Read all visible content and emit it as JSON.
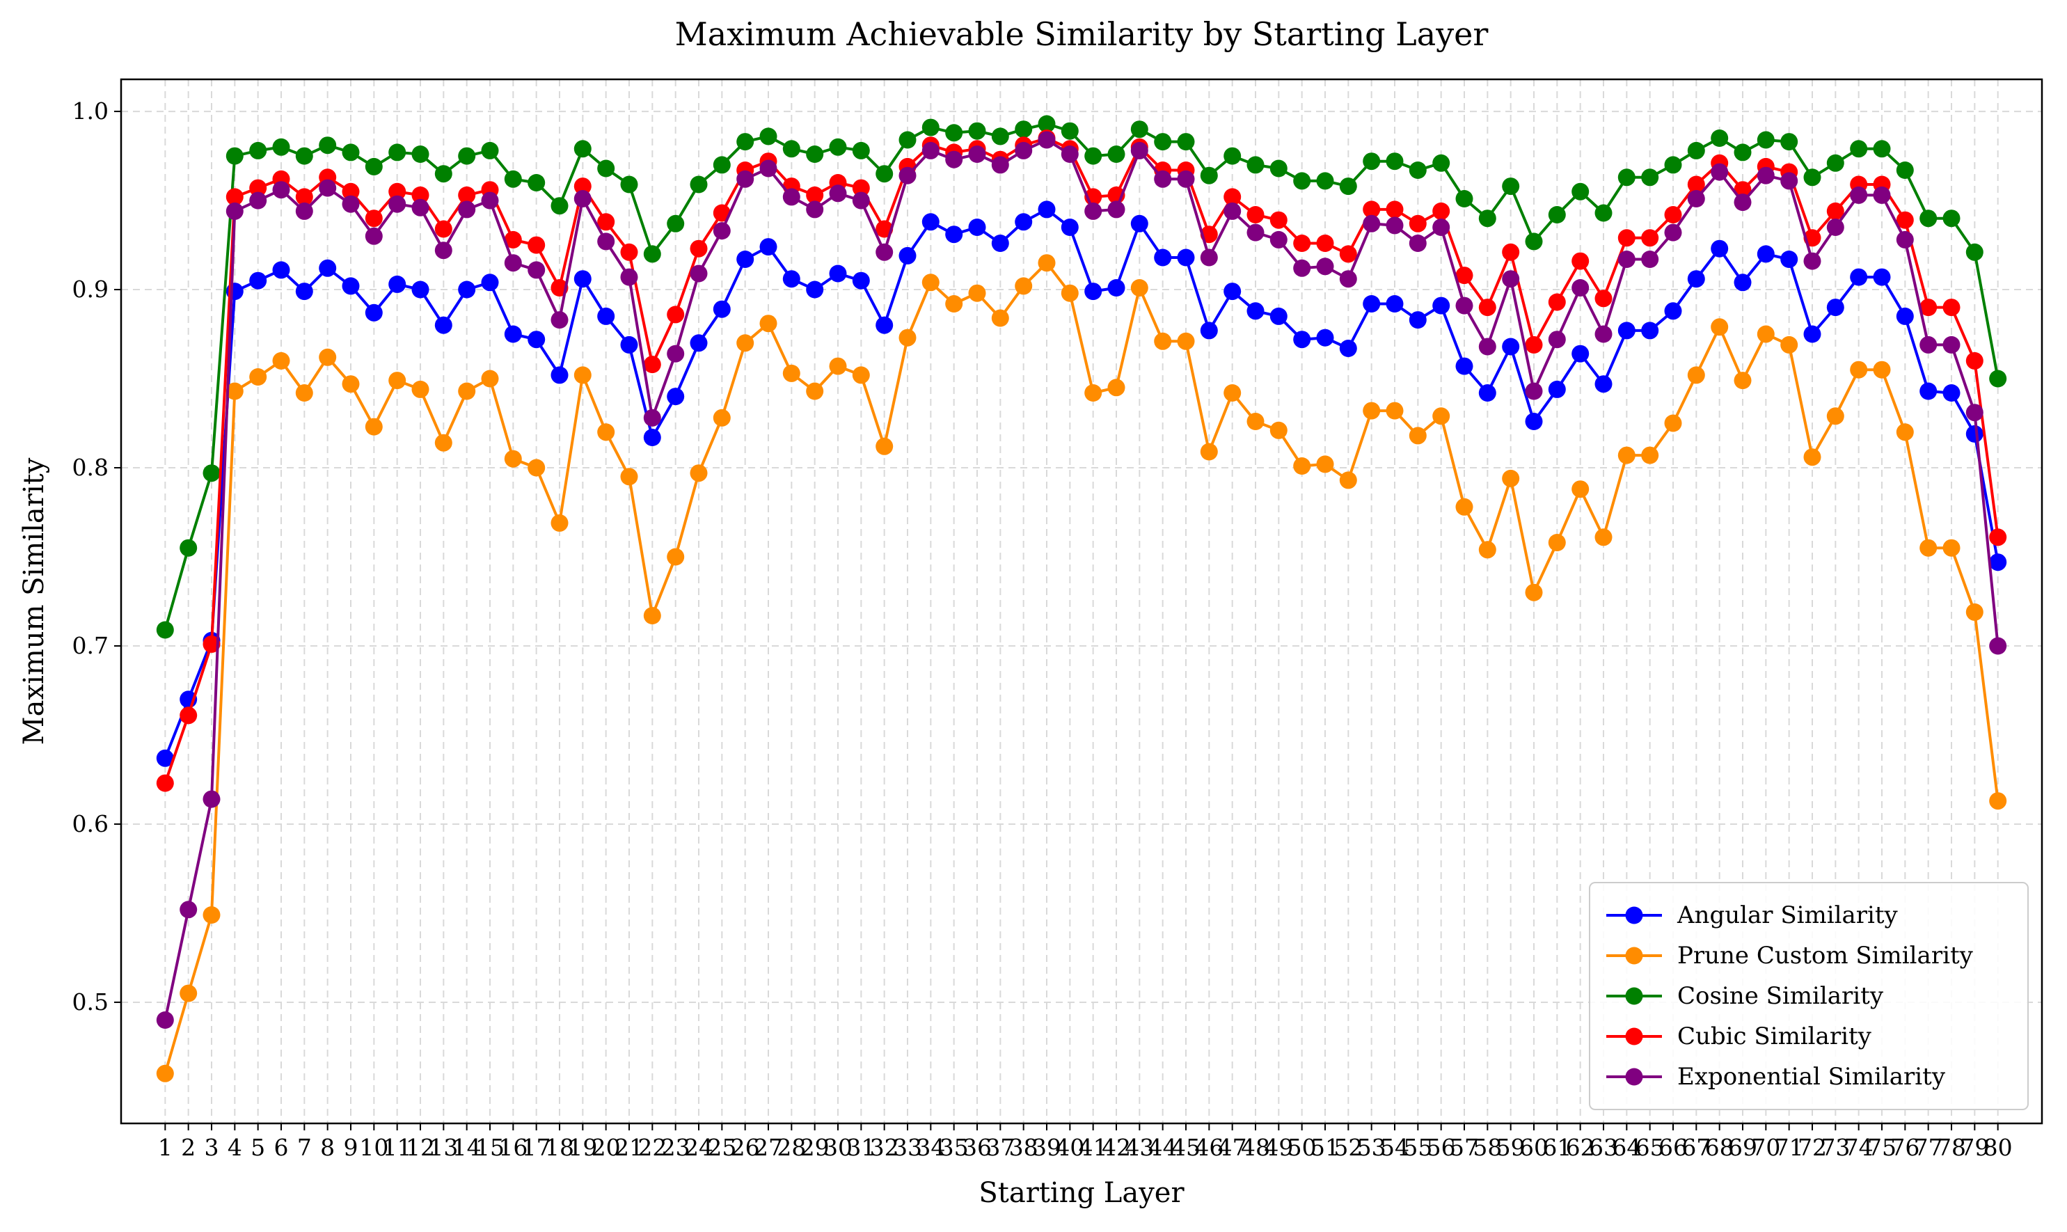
{
  "chart_data": {
    "type": "line",
    "title": "Maximum Achievable Similarity by Starting Layer",
    "xlabel": "Starting Layer",
    "ylabel": "Maximum Similarity",
    "x": [
      1,
      2,
      3,
      4,
      5,
      6,
      7,
      8,
      9,
      10,
      11,
      12,
      13,
      14,
      15,
      16,
      17,
      18,
      19,
      20,
      21,
      22,
      23,
      24,
      25,
      26,
      27,
      28,
      29,
      30,
      31,
      32,
      33,
      34,
      35,
      36,
      37,
      38,
      39,
      40,
      41,
      42,
      43,
      44,
      45,
      46,
      47,
      48,
      49,
      50,
      51,
      52,
      53,
      54,
      55,
      56,
      57,
      58,
      59,
      60,
      61,
      62,
      63,
      64,
      65,
      66,
      67,
      68,
      69,
      70,
      71,
      72,
      73,
      74,
      75,
      76,
      77,
      78,
      79,
      80
    ],
    "xlim": [
      -0.9,
      81.9
    ],
    "ylim": [
      0.432,
      1.018
    ],
    "yticks": [
      0.5,
      0.6,
      0.7,
      0.8,
      0.9,
      1.0
    ],
    "ytick_labels": [
      "0.5",
      "0.6",
      "0.7",
      "0.8",
      "0.9",
      "1.0"
    ],
    "grid": true,
    "legend_position": "lower-right",
    "series": [
      {
        "name": "Angular Similarity",
        "color": "#0000ff",
        "values": [
          0.637,
          0.67,
          0.703,
          0.899,
          0.905,
          0.911,
          0.899,
          0.912,
          0.902,
          0.887,
          0.903,
          0.9,
          0.88,
          0.9,
          0.904,
          0.875,
          0.872,
          0.852,
          0.906,
          0.885,
          0.869,
          0.817,
          0.84,
          0.87,
          0.889,
          0.917,
          0.924,
          0.906,
          0.9,
          0.909,
          0.905,
          0.88,
          0.919,
          0.938,
          0.931,
          0.935,
          0.926,
          0.938,
          0.945,
          0.935,
          0.899,
          0.901,
          0.937,
          0.918,
          0.918,
          0.877,
          0.899,
          0.888,
          0.885,
          0.872,
          0.873,
          0.867,
          0.892,
          0.892,
          0.883,
          0.891,
          0.857,
          0.842,
          0.868,
          0.826,
          0.844,
          0.864,
          0.847,
          0.877,
          0.877,
          0.888,
          0.906,
          0.923,
          0.904,
          0.92,
          0.917,
          0.875,
          0.89,
          0.907,
          0.907,
          0.885,
          0.843,
          0.842,
          0.819,
          0.747
        ]
      },
      {
        "name": "Prune Custom Similarity",
        "color": "#ff8c00",
        "values": [
          0.46,
          0.505,
          0.549,
          0.843,
          0.851,
          0.86,
          0.842,
          0.862,
          0.847,
          0.823,
          0.849,
          0.844,
          0.814,
          0.843,
          0.85,
          0.805,
          0.8,
          0.769,
          0.852,
          0.82,
          0.795,
          0.717,
          0.75,
          0.797,
          0.828,
          0.87,
          0.881,
          0.853,
          0.843,
          0.857,
          0.852,
          0.812,
          0.873,
          0.904,
          0.892,
          0.898,
          0.884,
          0.902,
          0.915,
          0.898,
          0.842,
          0.845,
          0.901,
          0.871,
          0.871,
          0.809,
          0.842,
          0.826,
          0.821,
          0.801,
          0.802,
          0.793,
          0.832,
          0.832,
          0.818,
          0.829,
          0.778,
          0.754,
          0.794,
          0.73,
          0.758,
          0.788,
          0.761,
          0.807,
          0.807,
          0.825,
          0.852,
          0.879,
          0.849,
          0.875,
          0.869,
          0.806,
          0.829,
          0.855,
          0.855,
          0.82,
          0.755,
          0.755,
          0.719,
          0.613
        ]
      },
      {
        "name": "Cosine Similarity",
        "color": "#008000",
        "values": [
          0.709,
          0.755,
          0.797,
          0.975,
          0.978,
          0.98,
          0.975,
          0.981,
          0.977,
          0.969,
          0.977,
          0.976,
          0.965,
          0.975,
          0.978,
          0.962,
          0.96,
          0.947,
          0.979,
          0.968,
          0.959,
          0.92,
          0.937,
          0.959,
          0.97,
          0.983,
          0.986,
          0.979,
          0.976,
          0.98,
          0.978,
          0.965,
          0.984,
          0.991,
          0.988,
          0.989,
          0.986,
          0.99,
          0.993,
          0.989,
          0.975,
          0.976,
          0.99,
          0.983,
          0.983,
          0.964,
          0.975,
          0.97,
          0.968,
          0.961,
          0.961,
          0.958,
          0.972,
          0.972,
          0.967,
          0.971,
          0.951,
          0.94,
          0.958,
          0.927,
          0.942,
          0.955,
          0.943,
          0.963,
          0.963,
          0.97,
          0.978,
          0.985,
          0.977,
          0.984,
          0.983,
          0.963,
          0.971,
          0.979,
          0.979,
          0.967,
          0.94,
          0.94,
          0.921,
          0.85
        ]
      },
      {
        "name": "Cubic Similarity",
        "color": "#ff0000",
        "values": [
          0.623,
          0.661,
          0.701,
          0.952,
          0.957,
          0.962,
          0.952,
          0.963,
          0.955,
          0.94,
          0.955,
          0.953,
          0.934,
          0.953,
          0.956,
          0.928,
          0.925,
          0.901,
          0.958,
          0.938,
          0.921,
          0.858,
          0.886,
          0.923,
          0.943,
          0.967,
          0.972,
          0.958,
          0.953,
          0.96,
          0.957,
          0.934,
          0.969,
          0.981,
          0.977,
          0.979,
          0.973,
          0.981,
          0.985,
          0.979,
          0.952,
          0.953,
          0.98,
          0.967,
          0.967,
          0.931,
          0.952,
          0.942,
          0.939,
          0.926,
          0.926,
          0.92,
          0.945,
          0.945,
          0.937,
          0.944,
          0.908,
          0.89,
          0.921,
          0.869,
          0.893,
          0.916,
          0.895,
          0.929,
          0.929,
          0.942,
          0.959,
          0.971,
          0.956,
          0.969,
          0.966,
          0.929,
          0.944,
          0.959,
          0.959,
          0.939,
          0.89,
          0.89,
          0.86,
          0.761
        ]
      },
      {
        "name": "Exponential Similarity",
        "color": "#800080",
        "values": [
          0.49,
          0.552,
          0.614,
          0.944,
          0.95,
          0.956,
          0.944,
          0.957,
          0.948,
          0.93,
          0.948,
          0.946,
          0.922,
          0.945,
          0.95,
          0.915,
          0.911,
          0.883,
          0.951,
          0.927,
          0.907,
          0.828,
          0.864,
          0.909,
          0.933,
          0.962,
          0.968,
          0.952,
          0.945,
          0.954,
          0.95,
          0.921,
          0.964,
          0.978,
          0.973,
          0.976,
          0.97,
          0.978,
          0.984,
          0.976,
          0.944,
          0.945,
          0.978,
          0.962,
          0.962,
          0.918,
          0.944,
          0.932,
          0.928,
          0.912,
          0.913,
          0.906,
          0.937,
          0.936,
          0.926,
          0.935,
          0.891,
          0.868,
          0.906,
          0.843,
          0.872,
          0.901,
          0.875,
          0.917,
          0.917,
          0.932,
          0.951,
          0.966,
          0.949,
          0.964,
          0.961,
          0.916,
          0.935,
          0.953,
          0.953,
          0.928,
          0.869,
          0.869,
          0.831,
          0.7
        ]
      }
    ]
  }
}
